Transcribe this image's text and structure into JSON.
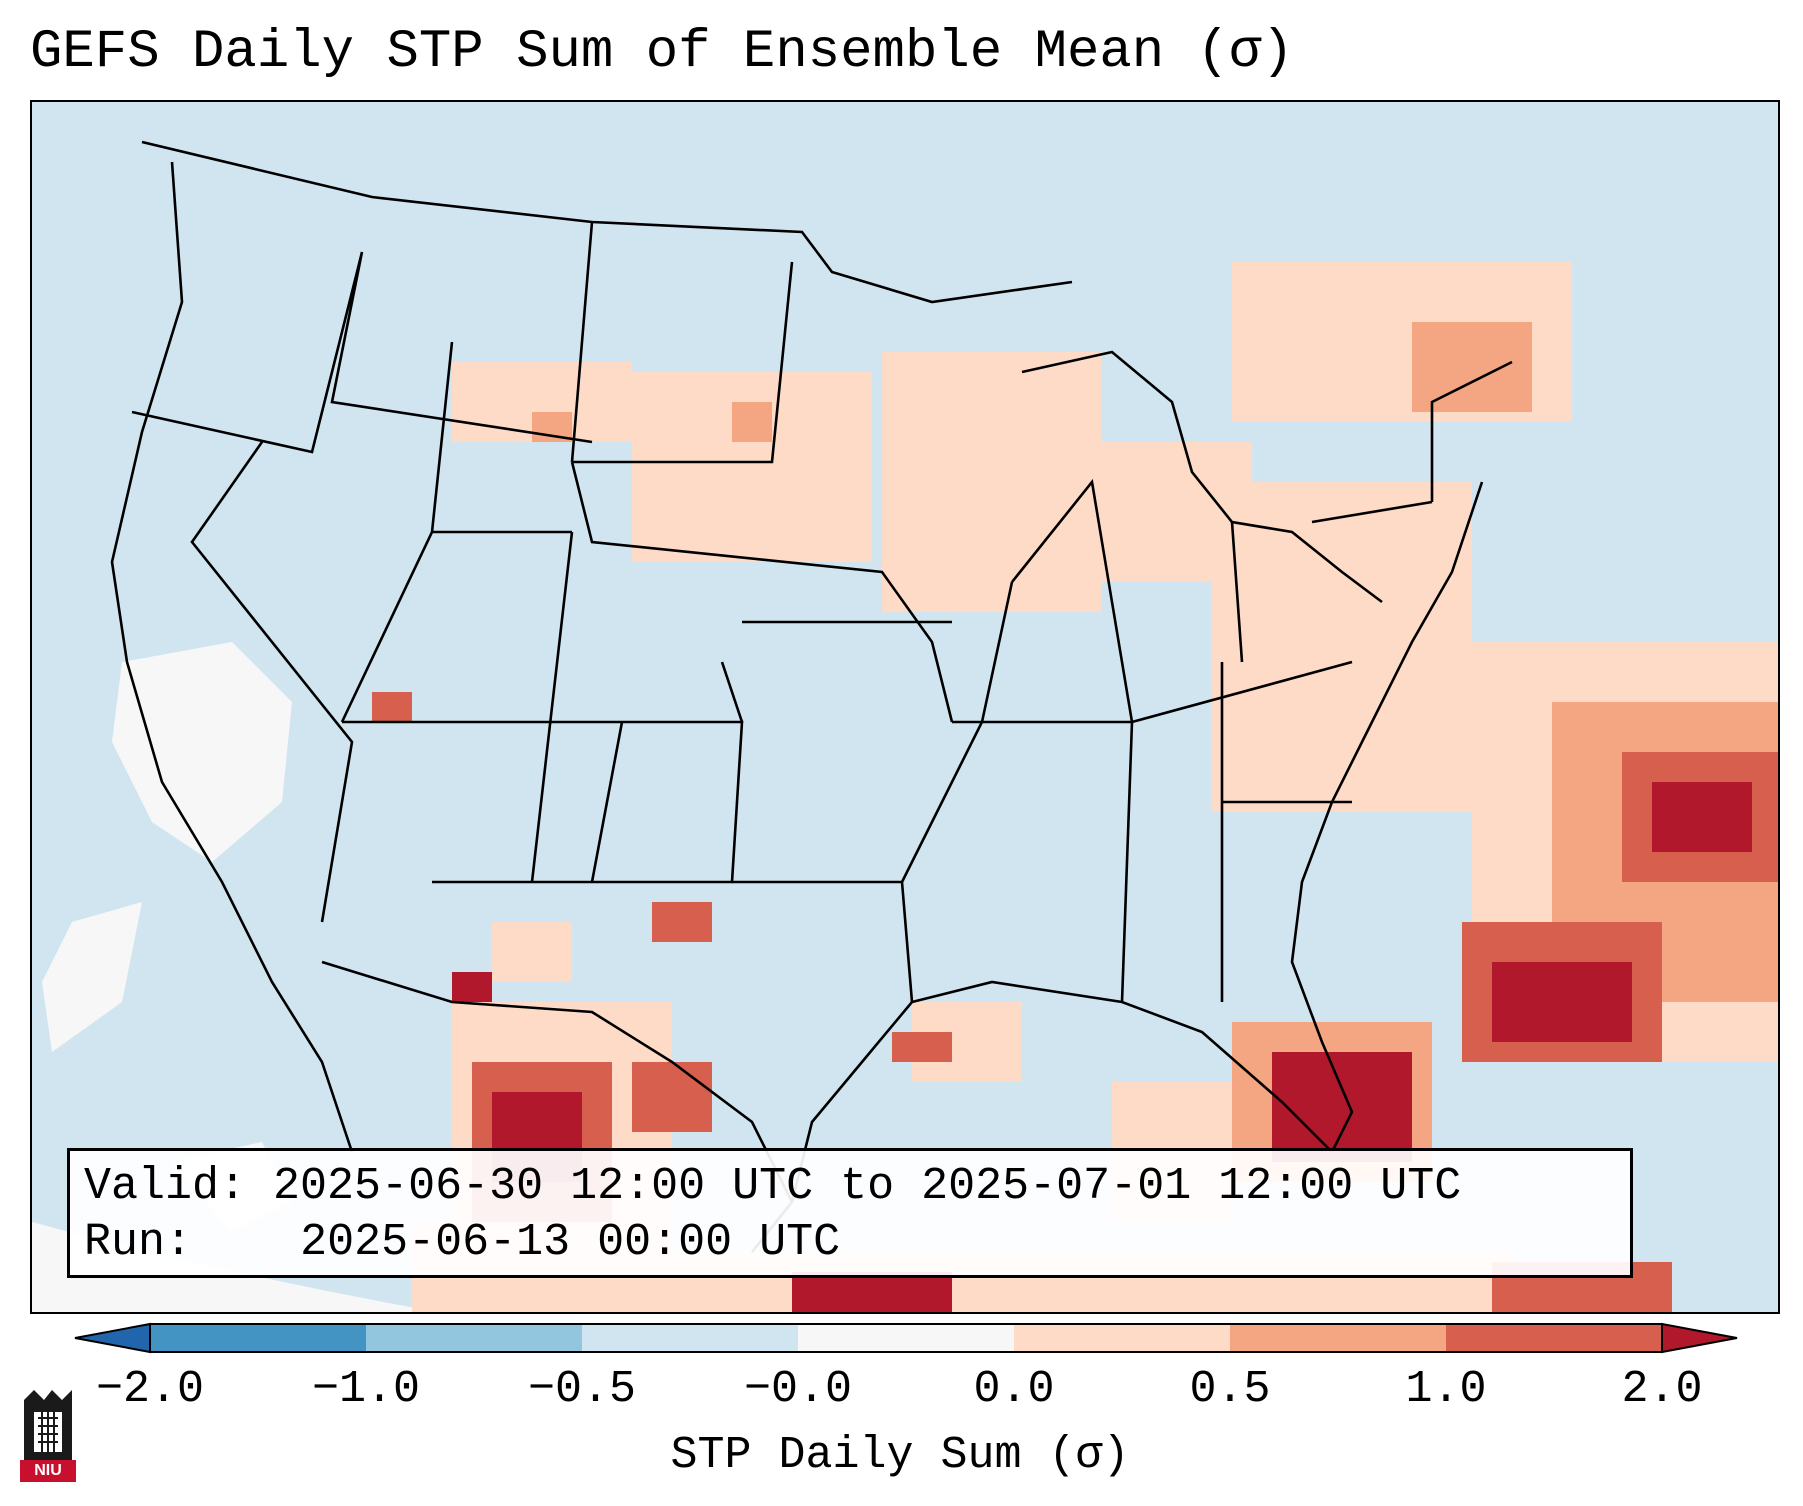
{
  "title": "GEFS Daily STP Sum of Ensemble Mean (σ)",
  "info": {
    "valid_label": "Valid:",
    "valid_value": "2025-06-30 12:00 UTC to 2025-07-01 12:00 UTC",
    "run_label": "Run:",
    "run_value": "2025-06-13 00:00 UTC"
  },
  "colorbar": {
    "title": "STP Daily Sum (σ)",
    "ticks": [
      "−2.0",
      "−1.0",
      "−0.5",
      "−0.0",
      "0.0",
      "0.5",
      "1.0",
      "2.0"
    ],
    "colors": [
      "#2166ac",
      "#4393c3",
      "#92c5de",
      "#d1e5f0",
      "#f7f7f7",
      "#fddbc7",
      "#f4a582",
      "#d6604d",
      "#b2182b"
    ]
  },
  "legend_bins": [
    {
      "range": "< -2.0",
      "color": "#2166ac"
    },
    {
      "range": "-2.0 to -1.0",
      "color": "#4393c3"
    },
    {
      "range": "-1.0 to -0.5",
      "color": "#92c5de"
    },
    {
      "range": "-0.5 to -0.0",
      "color": "#d1e5f0"
    },
    {
      "range": "-0.0 to 0.0",
      "color": "#f7f7f7"
    },
    {
      "range": "0.0 to 0.5",
      "color": "#fddbc7"
    },
    {
      "range": "0.5 to 1.0",
      "color": "#f4a582"
    },
    {
      "range": "1.0 to 2.0",
      "color": "#d6604d"
    },
    {
      "range": "> 2.0",
      "color": "#b2182b"
    }
  ],
  "logo": {
    "text": "NIU"
  }
}
